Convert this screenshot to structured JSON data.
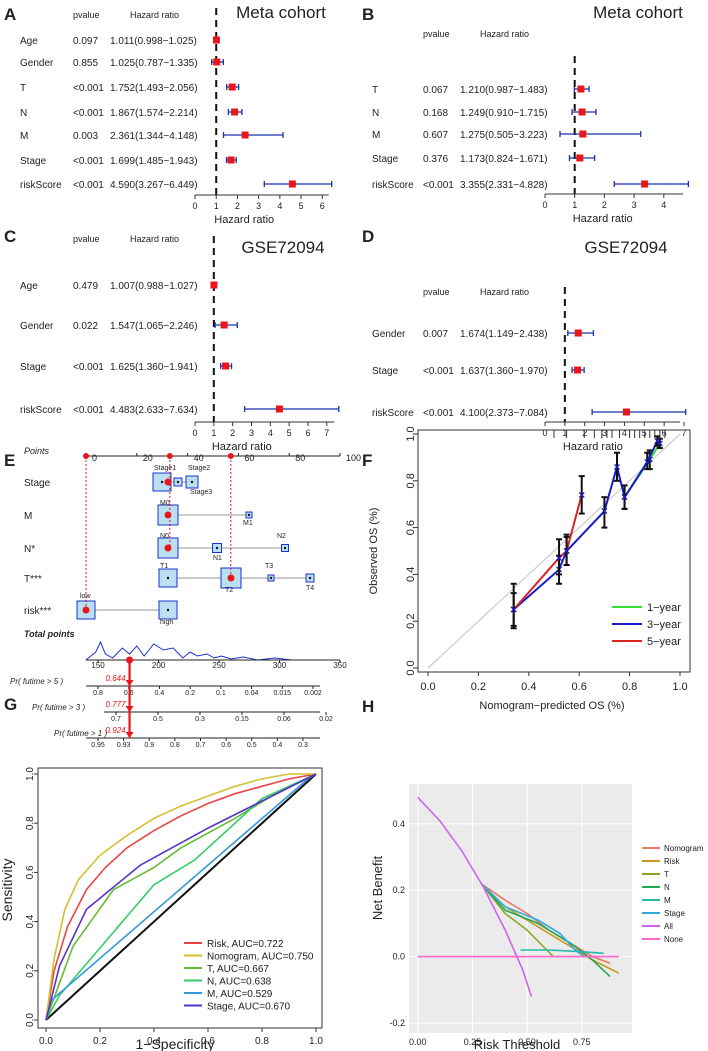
{
  "panel_letters": [
    "A",
    "B",
    "C",
    "D",
    "E",
    "F",
    "G",
    "H"
  ],
  "chart_data": [
    {
      "panel": "A",
      "type": "forest",
      "title": "Meta cohort",
      "col_pvalue": "pvalue",
      "col_hr": "Hazard ratio",
      "xlabel": "Hazard ratio",
      "xlim": [
        0,
        6.6
      ],
      "xticks": [
        "0",
        "1",
        "2",
        "3",
        "4",
        "5",
        "6"
      ],
      "rows": [
        {
          "label": "Age",
          "pvalue": "0.097",
          "hr_text": "1.011(0.998−1.025)",
          "hr": 1.011,
          "lo": 0.998,
          "hi": 1.025
        },
        {
          "label": "Gender",
          "pvalue": "0.855",
          "hr_text": "1.025(0.787−1.335)",
          "hr": 1.025,
          "lo": 0.787,
          "hi": 1.335
        },
        {
          "label": "T",
          "pvalue": "<0.001",
          "hr_text": "1.752(1.493−2.056)",
          "hr": 1.752,
          "lo": 1.493,
          "hi": 2.056
        },
        {
          "label": "N",
          "pvalue": "<0.001",
          "hr_text": "1.867(1.574−2.214)",
          "hr": 1.867,
          "lo": 1.574,
          "hi": 2.214
        },
        {
          "label": "M",
          "pvalue": "0.003",
          "hr_text": "2.361(1.344−4.148)",
          "hr": 2.361,
          "lo": 1.344,
          "hi": 4.148
        },
        {
          "label": "Stage",
          "pvalue": "<0.001",
          "hr_text": "1.699(1.485−1.943)",
          "hr": 1.699,
          "lo": 1.485,
          "hi": 1.943
        },
        {
          "label": "riskScore",
          "pvalue": "<0.001",
          "hr_text": "4.590(3.267−6.449)",
          "hr": 4.59,
          "lo": 3.267,
          "hi": 6.449
        }
      ]
    },
    {
      "panel": "B",
      "type": "forest",
      "title": "Meta cohort",
      "col_pvalue": "pvalue",
      "col_hr": "Hazard ratio",
      "xlabel": "Hazard ratio",
      "xlim": [
        0,
        4.95
      ],
      "xticks": [
        "0",
        "1",
        "2",
        "3",
        "4"
      ],
      "rows": [
        {
          "label": "T",
          "pvalue": "0.067",
          "hr_text": "1.210(0.987−1.483)",
          "hr": 1.21,
          "lo": 0.987,
          "hi": 1.483
        },
        {
          "label": "N",
          "pvalue": "0.168",
          "hr_text": "1.249(0.910−1.715)",
          "hr": 1.249,
          "lo": 0.91,
          "hi": 1.715
        },
        {
          "label": "M",
          "pvalue": "0.607",
          "hr_text": "1.275(0.505−3.223)",
          "hr": 1.275,
          "lo": 0.505,
          "hi": 3.223
        },
        {
          "label": "Stage",
          "pvalue": "0.376",
          "hr_text": "1.173(0.824−1.671)",
          "hr": 1.173,
          "lo": 0.824,
          "hi": 1.671
        },
        {
          "label": "riskScore",
          "pvalue": "<0.001",
          "hr_text": "3.355(2.331−4.828)",
          "hr": 3.355,
          "lo": 2.331,
          "hi": 4.828
        }
      ]
    },
    {
      "panel": "C",
      "type": "forest",
      "title": "GSE72094",
      "col_pvalue": "pvalue",
      "col_hr": "Hazard ratio",
      "xlabel": "Hazard ratio",
      "xlim": [
        0,
        7.7
      ],
      "xticks": [
        "0",
        "1",
        "2",
        "3",
        "4",
        "5",
        "6",
        "7"
      ],
      "rows": [
        {
          "label": "Age",
          "pvalue": "0.479",
          "hr_text": "1.007(0.988−1.027)",
          "hr": 1.007,
          "lo": 0.988,
          "hi": 1.027
        },
        {
          "label": "Gender",
          "pvalue": "0.022",
          "hr_text": "1.547(1.065−2.246)",
          "hr": 1.547,
          "lo": 1.065,
          "hi": 2.246
        },
        {
          "label": "Stage",
          "pvalue": "<0.001",
          "hr_text": "1.625(1.360−1.941)",
          "hr": 1.625,
          "lo": 1.36,
          "hi": 1.941
        },
        {
          "label": "riskScore",
          "pvalue": "<0.001",
          "hr_text": "4.483(2.633−7.634)",
          "hr": 4.483,
          "lo": 2.633,
          "hi": 7.634
        }
      ]
    },
    {
      "panel": "D",
      "type": "forest",
      "title": "GSE72094",
      "col_pvalue": "pvalue",
      "col_hr": "Hazard ratio",
      "xlabel": "Hazard ratio",
      "xlim": [
        0,
        7.1
      ],
      "xticks": [
        "0",
        "1",
        "2",
        "3",
        "4",
        "5",
        "6",
        "7"
      ],
      "rows": [
        {
          "label": "Gender",
          "pvalue": "0.007",
          "hr_text": "1.674(1.149−2.438)",
          "hr": 1.674,
          "lo": 1.149,
          "hi": 2.438
        },
        {
          "label": "Stage",
          "pvalue": "<0.001",
          "hr_text": "1.637(1.360−1.970)",
          "hr": 1.637,
          "lo": 1.36,
          "hi": 1.97
        },
        {
          "label": "riskScore",
          "pvalue": "<0.001",
          "hr_text": "4.100(2.373−7.084)",
          "hr": 4.1,
          "lo": 2.373,
          "hi": 7.084
        }
      ]
    },
    {
      "panel": "E",
      "type": "nomogram",
      "points_label": "Points",
      "points_ticks": [
        "0",
        "20",
        "40",
        "60",
        "80",
        "100"
      ],
      "variables": [
        {
          "label": "Stage",
          "levels": [
            "Stage1",
            "Stage2",
            "Stage3"
          ]
        },
        {
          "label": "M",
          "levels": [
            "M0",
            "M1"
          ]
        },
        {
          "label": "N*",
          "levels": [
            "N0",
            "N1",
            "N2"
          ]
        },
        {
          "label": "T***",
          "levels": [
            "T1",
            "T2",
            "T3",
            "T4"
          ]
        },
        {
          "label": "risk***",
          "levels": [
            "low",
            "high"
          ]
        }
      ],
      "total_points_label": "Total points",
      "total_ticks": [
        "150",
        "200",
        "250",
        "300",
        "350"
      ],
      "total_value": 176,
      "prob_axes": [
        {
          "label": "Pr( futime > 5 )",
          "ticks": [
            "0.8",
            "0.6",
            "0.4",
            "0.2",
            "0.1",
            "0.04",
            "0.015",
            "0.002"
          ],
          "predicted": "0.644"
        },
        {
          "label": "Pr( futime > 3 )",
          "ticks": [
            "0.7",
            "0.5",
            "0.3",
            "0.15",
            "0.06",
            "0.02"
          ],
          "predicted": "0.777"
        },
        {
          "label": "Pr( futime > 1 )",
          "ticks": [
            "0.95",
            "0.93",
            "0.9",
            "0.8",
            "0.7",
            "0.6",
            "0.5",
            "0.4",
            "0.3"
          ],
          "predicted": "0.924"
        }
      ]
    },
    {
      "panel": "F",
      "type": "calibration",
      "xlabel": "Nomogram−predicted OS (%)",
      "ylabel": "Observed OS (%)",
      "xlim": [
        0,
        1
      ],
      "ylim": [
        0,
        1
      ],
      "xticks": [
        "0.0",
        "0.2",
        "0.4",
        "0.6",
        "0.8",
        "1.0"
      ],
      "yticks": [
        "0.0",
        "0.2",
        "0.4",
        "0.6",
        "0.8",
        "1.0"
      ],
      "series": [
        {
          "name": "1−year",
          "color": "#33dd33",
          "x": [
            0.78,
            0.88,
            0.92
          ],
          "y": [
            0.73,
            0.89,
            0.96
          ],
          "lo": [
            0.68,
            0.85,
            0.94
          ],
          "hi": [
            0.78,
            0.93,
            0.98
          ]
        },
        {
          "name": "3−year",
          "color": "#1a1acc",
          "x": [
            0.34,
            0.52,
            0.55,
            0.7,
            0.75,
            0.78,
            0.87,
            0.91
          ],
          "y": [
            0.25,
            0.42,
            0.5,
            0.67,
            0.86,
            0.73,
            0.88,
            0.97
          ],
          "lo": [
            0.18,
            0.36,
            0.44,
            0.6,
            0.8,
            0.68,
            0.85,
            0.95
          ],
          "hi": [
            0.32,
            0.48,
            0.56,
            0.73,
            0.92,
            0.78,
            0.92,
            0.99
          ]
        },
        {
          "name": "5−year",
          "color": "#dd2222",
          "x": [
            0.34,
            0.52,
            0.55,
            0.61
          ],
          "y": [
            0.25,
            0.47,
            0.5,
            0.74
          ],
          "lo": [
            0.17,
            0.4,
            0.44,
            0.66
          ],
          "hi": [
            0.36,
            0.55,
            0.57,
            0.82
          ]
        }
      ]
    },
    {
      "panel": "G",
      "type": "roc",
      "xlabel": "1−Specificity",
      "ylabel": "Sensitivity",
      "xticks": [
        "0.0",
        "0.2",
        "0.4",
        "0.6",
        "0.8",
        "1.0"
      ],
      "yticks": [
        "0.0",
        "0.2",
        "0.4",
        "0.6",
        "0.8",
        "1.0"
      ],
      "series": [
        {
          "name": "Risk",
          "auc": "0.722",
          "color": "#e84444",
          "x": [
            0,
            0.03,
            0.08,
            0.15,
            0.22,
            0.3,
            0.4,
            0.5,
            0.6,
            0.7,
            0.8,
            0.9,
            1
          ],
          "y": [
            0,
            0.2,
            0.38,
            0.53,
            0.62,
            0.7,
            0.77,
            0.83,
            0.88,
            0.92,
            0.95,
            0.98,
            1
          ]
        },
        {
          "name": "Nomogram",
          "auc": "0.750",
          "color": "#d4c030",
          "x": [
            0,
            0.03,
            0.07,
            0.12,
            0.2,
            0.3,
            0.4,
            0.5,
            0.6,
            0.7,
            0.8,
            0.9,
            1
          ],
          "y": [
            0,
            0.25,
            0.45,
            0.57,
            0.67,
            0.75,
            0.82,
            0.87,
            0.91,
            0.95,
            0.98,
            1,
            1
          ]
        },
        {
          "name": "T",
          "auc": "0.667",
          "color": "#66bb33",
          "x": [
            0,
            0.1,
            0.25,
            0.4,
            0.5,
            0.7,
            0.85,
            1
          ],
          "y": [
            0,
            0.3,
            0.53,
            0.62,
            0.7,
            0.82,
            0.92,
            1
          ]
        },
        {
          "name": "N",
          "auc": "0.638",
          "color": "#33cc66",
          "x": [
            0,
            0.05,
            0.4,
            0.55,
            0.8,
            1
          ],
          "y": [
            0,
            0.1,
            0.55,
            0.65,
            0.9,
            1
          ]
        },
        {
          "name": "M",
          "auc": "0.529",
          "color": "#3399dd",
          "x": [
            0,
            0.02,
            0.97,
            1
          ],
          "y": [
            0,
            0.08,
            0.98,
            1
          ]
        },
        {
          "name": "Stage",
          "auc": "0.670",
          "color": "#5533cc",
          "x": [
            0,
            0.05,
            0.15,
            0.35,
            0.6,
            1
          ],
          "y": [
            0,
            0.22,
            0.45,
            0.63,
            0.78,
            1
          ]
        }
      ]
    },
    {
      "panel": "H",
      "type": "dca",
      "xlabel": "Risk Threshold",
      "ylabel": "Net Benefit",
      "xticks": [
        "0.00",
        "0.25",
        "0.50",
        "0.75"
      ],
      "yticks": [
        "-0.2",
        "0.0",
        "0.2",
        "0.4"
      ],
      "xlim": [
        -0.04,
        0.98
      ],
      "ylim": [
        -0.23,
        0.52
      ],
      "series": [
        {
          "name": "Nomogram",
          "color": "#ee7766",
          "x": [
            0.29,
            0.4,
            0.5,
            0.6,
            0.7,
            0.8,
            0.88
          ],
          "y": [
            0.22,
            0.17,
            0.13,
            0.08,
            0.04,
            0.0,
            -0.02
          ]
        },
        {
          "name": "Risk",
          "color": "#cc9922",
          "x": [
            0.29,
            0.4,
            0.5,
            0.6,
            0.7,
            0.8,
            0.92
          ],
          "y": [
            0.22,
            0.15,
            0.11,
            0.07,
            0.03,
            -0.01,
            -0.05
          ]
        },
        {
          "name": "T",
          "color": "#88aa22",
          "x": [
            0.29,
            0.4,
            0.5,
            0.62
          ],
          "y": [
            0.22,
            0.13,
            0.08,
            0.0
          ]
        },
        {
          "name": "N",
          "color": "#22aa55",
          "x": [
            0.29,
            0.4,
            0.55,
            0.7,
            0.8,
            0.88
          ],
          "y": [
            0.22,
            0.14,
            0.1,
            0.04,
            -0.01,
            -0.06
          ]
        },
        {
          "name": "M",
          "color": "#22bbaa",
          "x": [
            0.47,
            0.6,
            0.75,
            0.85
          ],
          "y": [
            0.02,
            0.02,
            0.015,
            0.01
          ]
        },
        {
          "name": "Stage",
          "color": "#33aadd",
          "x": [
            0.29,
            0.4,
            0.55,
            0.65,
            0.72,
            0.76
          ],
          "y": [
            0.22,
            0.15,
            0.11,
            0.07,
            0.02,
            0.0
          ]
        },
        {
          "name": "All",
          "color": "#cc66ee",
          "x": [
            0.0,
            0.1,
            0.2,
            0.3,
            0.4,
            0.48,
            0.52
          ],
          "y": [
            0.48,
            0.41,
            0.32,
            0.21,
            0.08,
            -0.04,
            -0.12
          ]
        },
        {
          "name": "None",
          "color": "#ff66cc",
          "x": [
            0.0,
            0.92
          ],
          "y": [
            0.0,
            0.0
          ]
        }
      ]
    }
  ]
}
